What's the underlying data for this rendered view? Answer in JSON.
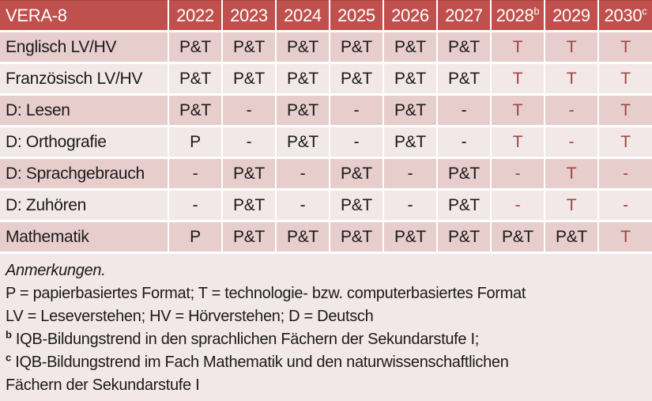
{
  "colors": {
    "header_bg": "#C0504D",
    "header_text": "#FFFFFF",
    "row_dark_bg": "#E7CDCC",
    "row_light_bg": "#F2E8E7",
    "body_text": "#1A1A1A",
    "highlight_text": "#A04441",
    "separator": "#FFFFFF"
  },
  "table": {
    "title": "VERA-8",
    "columns": [
      {
        "label": "2022",
        "sup": ""
      },
      {
        "label": "2023",
        "sup": ""
      },
      {
        "label": "2024",
        "sup": ""
      },
      {
        "label": "2025",
        "sup": ""
      },
      {
        "label": "2026",
        "sup": ""
      },
      {
        "label": "2027",
        "sup": ""
      },
      {
        "label": "2028",
        "sup": "b"
      },
      {
        "label": "2029",
        "sup": ""
      },
      {
        "label": "2030",
        "sup": "c"
      }
    ],
    "rows": [
      {
        "label": "Englisch LV/HV",
        "cells": [
          {
            "text": "P&T",
            "red": false
          },
          {
            "text": "P&T",
            "red": false
          },
          {
            "text": "P&T",
            "red": false
          },
          {
            "text": "P&T",
            "red": false
          },
          {
            "text": "P&T",
            "red": false
          },
          {
            "text": "P&T",
            "red": false
          },
          {
            "text": "T",
            "red": true
          },
          {
            "text": "T",
            "red": true
          },
          {
            "text": "T",
            "red": true
          }
        ]
      },
      {
        "label": "Französisch LV/HV",
        "cells": [
          {
            "text": "P&T",
            "red": false
          },
          {
            "text": "P&T",
            "red": false
          },
          {
            "text": "P&T",
            "red": false
          },
          {
            "text": "P&T",
            "red": false
          },
          {
            "text": "P&T",
            "red": false
          },
          {
            "text": "P&T",
            "red": false
          },
          {
            "text": "T",
            "red": true
          },
          {
            "text": "T",
            "red": true
          },
          {
            "text": "T",
            "red": true
          }
        ]
      },
      {
        "label": "D: Lesen",
        "cells": [
          {
            "text": "P&T",
            "red": false
          },
          {
            "text": "-",
            "red": false
          },
          {
            "text": "P&T",
            "red": false
          },
          {
            "text": "-",
            "red": false
          },
          {
            "text": "P&T",
            "red": false
          },
          {
            "text": "-",
            "red": false
          },
          {
            "text": "T",
            "red": true
          },
          {
            "text": "-",
            "red": true
          },
          {
            "text": "T",
            "red": true
          }
        ]
      },
      {
        "label": "D: Orthografie",
        "cells": [
          {
            "text": "P",
            "red": false
          },
          {
            "text": "-",
            "red": false
          },
          {
            "text": "P&T",
            "red": false
          },
          {
            "text": "-",
            "red": false
          },
          {
            "text": "P&T",
            "red": false
          },
          {
            "text": "-",
            "red": false
          },
          {
            "text": "T",
            "red": true
          },
          {
            "text": "-",
            "red": true
          },
          {
            "text": "T",
            "red": true
          }
        ]
      },
      {
        "label": "D: Sprachgebrauch",
        "cells": [
          {
            "text": "-",
            "red": false
          },
          {
            "text": "P&T",
            "red": false
          },
          {
            "text": "-",
            "red": false
          },
          {
            "text": "P&T",
            "red": false
          },
          {
            "text": "-",
            "red": false
          },
          {
            "text": "P&T",
            "red": false
          },
          {
            "text": "-",
            "red": true
          },
          {
            "text": "T",
            "red": true
          },
          {
            "text": "-",
            "red": true
          }
        ]
      },
      {
        "label": "D: Zuhören",
        "cells": [
          {
            "text": "-",
            "red": false
          },
          {
            "text": "P&T",
            "red": false
          },
          {
            "text": "-",
            "red": false
          },
          {
            "text": "P&T",
            "red": false
          },
          {
            "text": "-",
            "red": false
          },
          {
            "text": "P&T",
            "red": false
          },
          {
            "text": "-",
            "red": true
          },
          {
            "text": "T",
            "red": true
          },
          {
            "text": "-",
            "red": true
          }
        ]
      },
      {
        "label": "Mathematik",
        "cells": [
          {
            "text": "P",
            "red": false
          },
          {
            "text": "P&T",
            "red": false
          },
          {
            "text": "P&T",
            "red": false
          },
          {
            "text": "P&T",
            "red": false
          },
          {
            "text": "P&T",
            "red": false
          },
          {
            "text": "P&T",
            "red": false
          },
          {
            "text": "P&T",
            "red": false
          },
          {
            "text": "P&T",
            "red": false
          },
          {
            "text": "T",
            "red": true
          }
        ]
      }
    ]
  },
  "notes": {
    "heading": "Anmerkungen.",
    "formats_line": "P = papierbasiertes Format; T = technologie- bzw. computerbasiertes Format",
    "abbreviations_line": "LV = Leseverstehen; HV = Hörverstehen; D = Deutsch",
    "note_b": {
      "sup": "b",
      "text": "IQB-Bildungstrend in den sprachlichen Fächern der Sekundarstufe I;"
    },
    "note_c": {
      "sup": "c",
      "text": "IQB-Bildungstrend im Fach Mathematik und den naturwissenschaftlichen Fächern der Sekundarstufe I"
    }
  }
}
